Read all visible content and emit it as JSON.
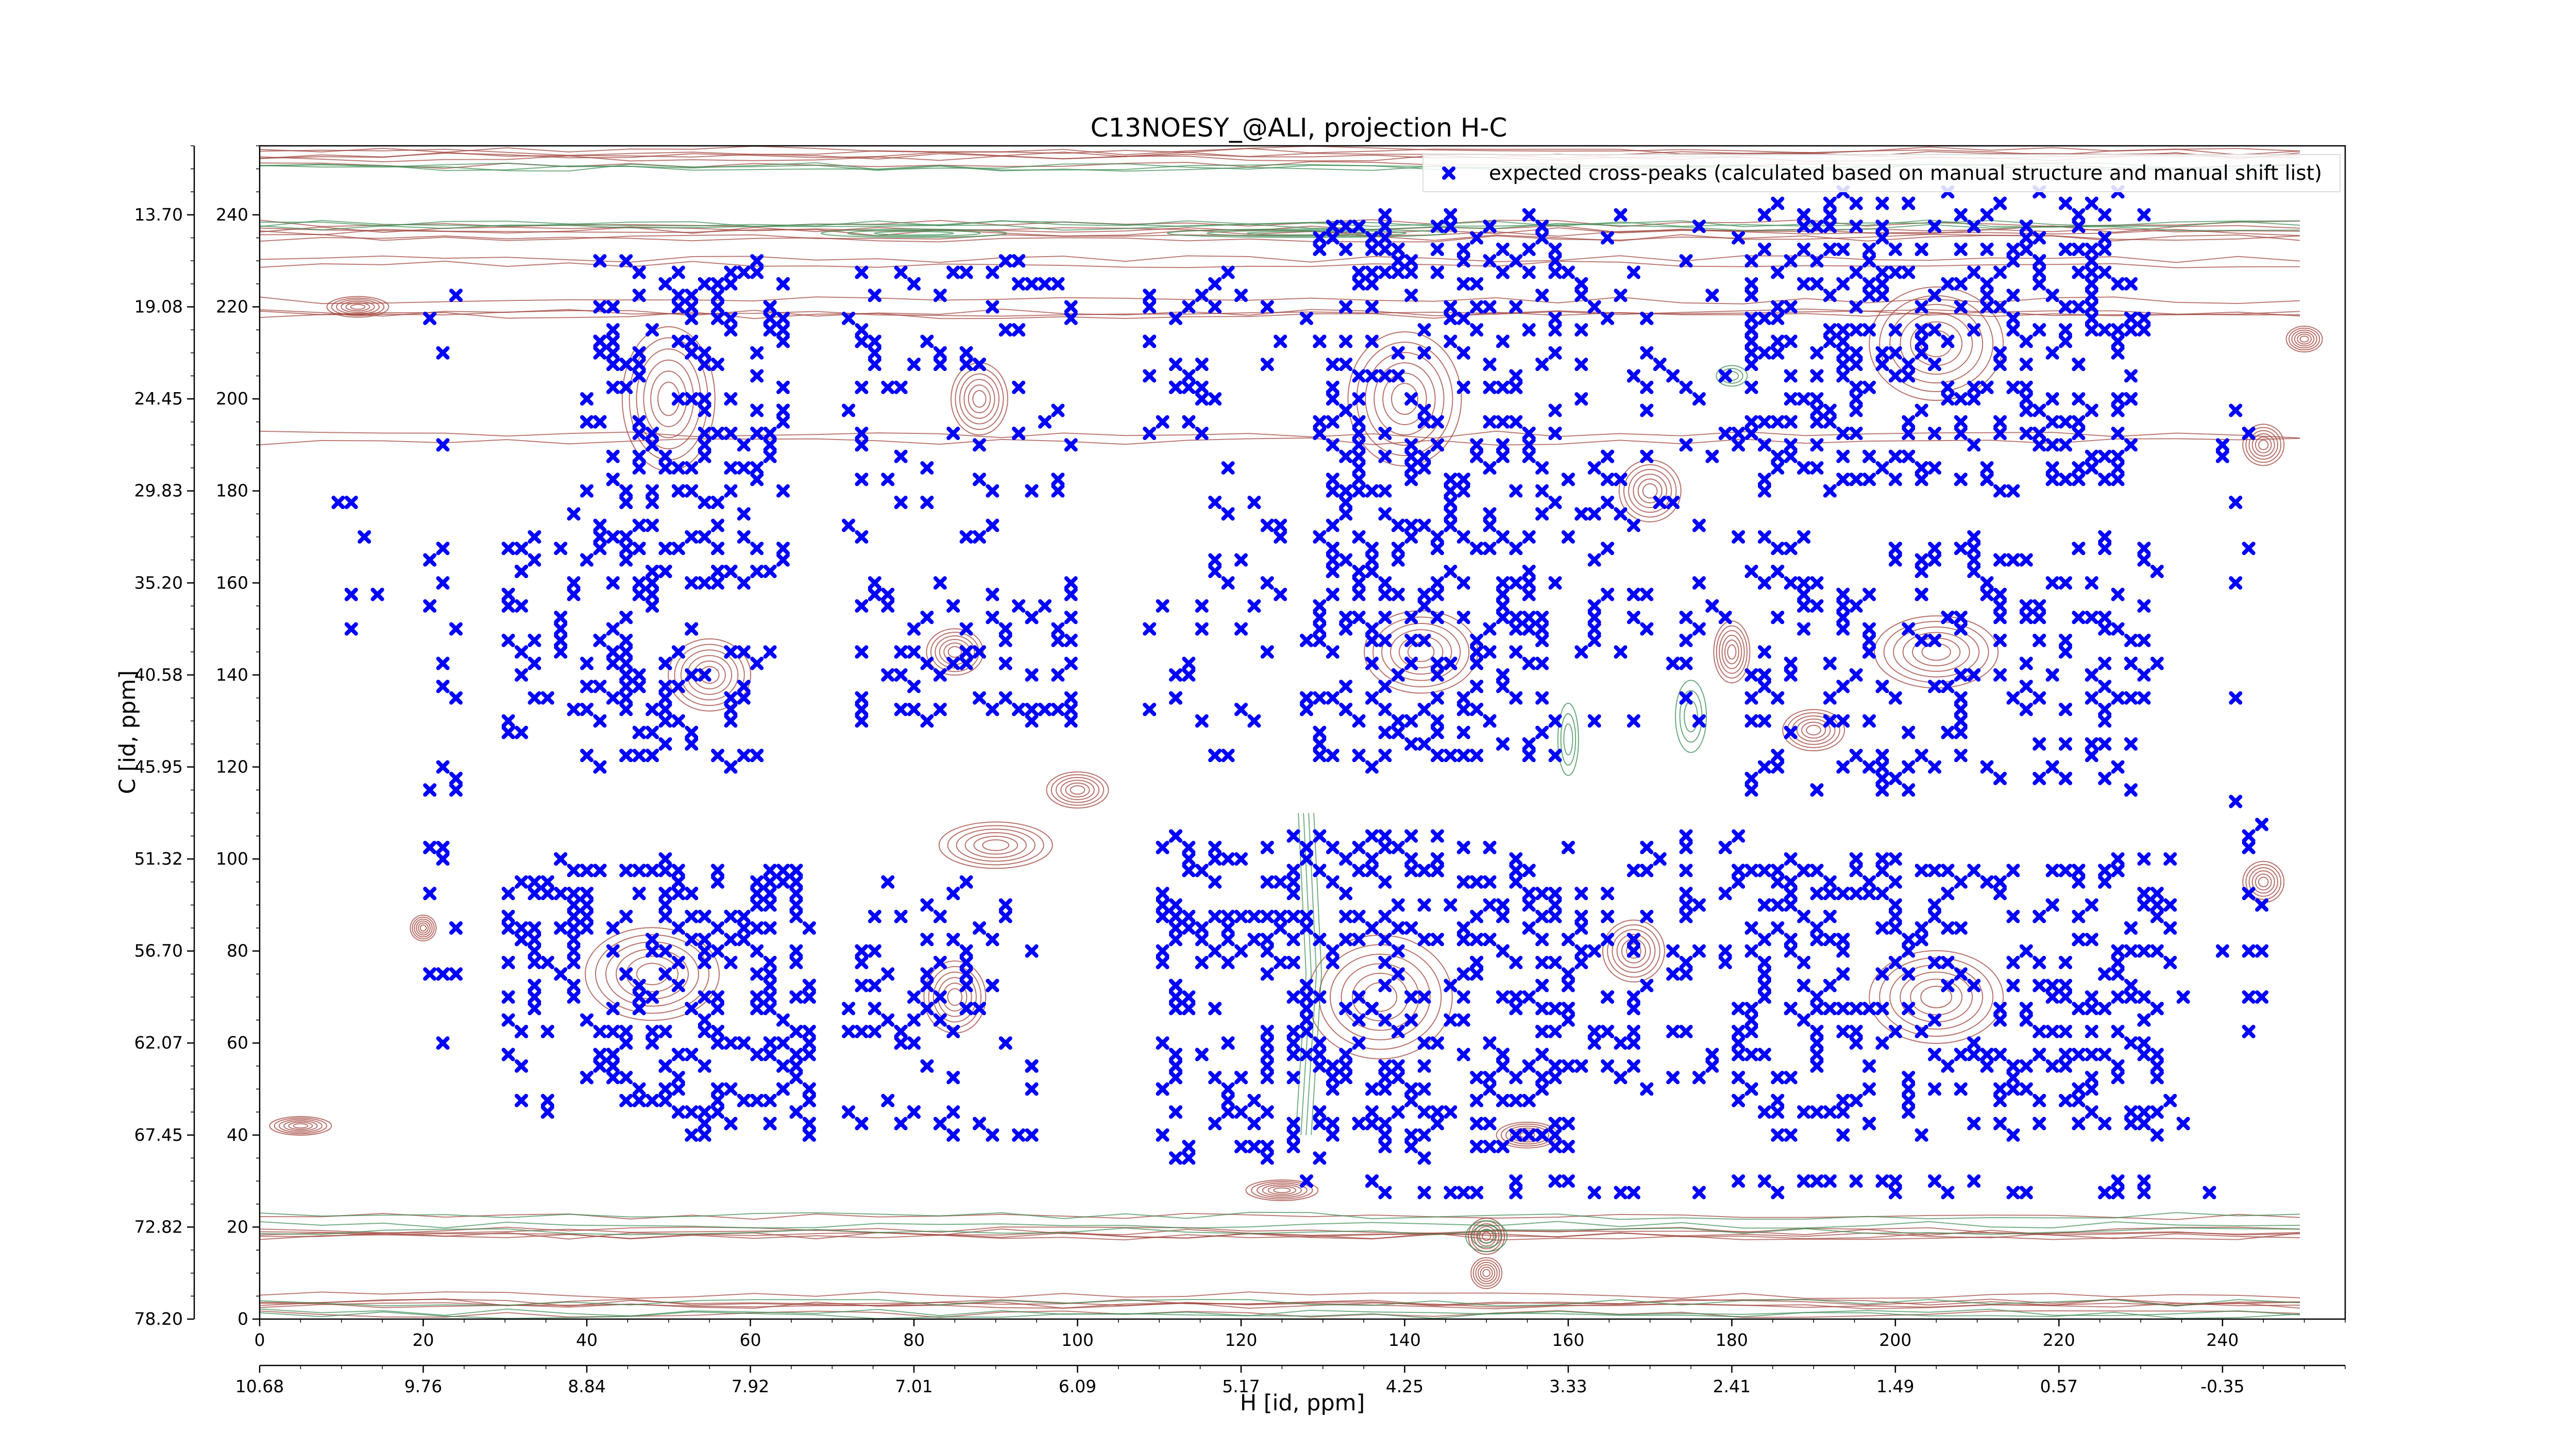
{
  "chart_data": {
    "type": "scatter",
    "title": "C13NOESY_@ALI, projection H-C",
    "xlabel": "H [id, ppm]",
    "ylabel": "C [id, ppm]",
    "xlim": [
      0,
      255
    ],
    "ylim": [
      0,
      255
    ],
    "x_ticks_index": [
      "0",
      "20",
      "40",
      "60",
      "80",
      "100",
      "120",
      "140",
      "160",
      "180",
      "200",
      "220",
      "240"
    ],
    "x_ticks_ppm": [
      "10.68",
      "9.76",
      "8.84",
      "7.92",
      "7.01",
      "6.09",
      "5.17",
      "4.25",
      "3.33",
      "2.41",
      "1.49",
      "0.57",
      "-0.35"
    ],
    "y_ticks_index": [
      "0",
      "20",
      "40",
      "60",
      "80",
      "100",
      "120",
      "140",
      "160",
      "180",
      "200",
      "220",
      "240"
    ],
    "y_ticks_ppm": [
      "78.20",
      "72.82",
      "67.45",
      "62.07",
      "56.70",
      "51.32",
      "45.95",
      "40.58",
      "35.20",
      "29.83",
      "24.45",
      "19.08",
      "13.70"
    ],
    "grid": false,
    "legend": {
      "position": "top-right",
      "entries": [
        "expected cross-peaks (calculated based on manual structure and manual shift list)"
      ]
    },
    "colors": {
      "markers": "#0000ff",
      "contour_positive": "#a0433a",
      "contour_negative": "#3a8c52"
    },
    "series": [
      {
        "name": "expected cross-peaks (calculated based on manual structure and manual shift list)",
        "clusters": [
          {
            "x": [
              40,
              65
            ],
            "y": [
              160,
              230
            ],
            "count": 160
          },
          {
            "x": [
              30,
              50
            ],
            "y": [
              120,
              175
            ],
            "count": 60
          },
          {
            "x": [
              42,
              62
            ],
            "y": [
              120,
              150
            ],
            "count": 50
          },
          {
            "x": [
              72,
              100
            ],
            "y": [
              170,
              230
            ],
            "count": 70
          },
          {
            "x": [
              72,
              100
            ],
            "y": [
              130,
              160
            ],
            "count": 60
          },
          {
            "x": [
              30,
              68
            ],
            "y": [
              40,
              100
            ],
            "count": 230
          },
          {
            "x": [
              72,
              95
            ],
            "y": [
              40,
              95
            ],
            "count": 70
          },
          {
            "x": [
              108,
              125
            ],
            "y": [
              120,
              230
            ],
            "count": 60
          },
          {
            "x": [
              128,
              160
            ],
            "y": [
              170,
              240
            ],
            "count": 180
          },
          {
            "x": [
              128,
              158
            ],
            "y": [
              120,
              170
            ],
            "count": 150
          },
          {
            "x": [
              160,
              185
            ],
            "y": [
              130,
              240
            ],
            "count": 90
          },
          {
            "x": [
              182,
              230
            ],
            "y": [
              180,
              245
            ],
            "count": 300
          },
          {
            "x": [
              182,
              232
            ],
            "y": [
              115,
              170
            ],
            "count": 180
          },
          {
            "x": [
              110,
              160
            ],
            "y": [
              35,
              105
            ],
            "count": 330
          },
          {
            "x": [
              160,
              185
            ],
            "y": [
              50,
              105
            ],
            "count": 80
          },
          {
            "x": [
              180,
              235
            ],
            "y": [
              40,
              100
            ],
            "count": 280
          },
          {
            "x": [
              240,
              245
            ],
            "y": [
              60,
              200
            ],
            "count": 20
          },
          {
            "x": [
              20,
              25
            ],
            "y": [
              60,
              225
            ],
            "count": 25
          },
          {
            "x": [
              8,
              17
            ],
            "y": [
              140,
              180
            ],
            "count": 6
          },
          {
            "x": [
              125,
              240
            ],
            "y": [
              27,
              30
            ],
            "count": 40
          }
        ]
      }
    ]
  }
}
